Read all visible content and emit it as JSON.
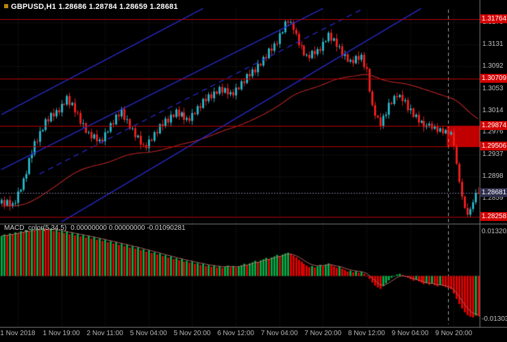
{
  "window": {
    "symbol": "GBPUSD,H1",
    "ohlc_text": "1.28686 1.28784 1.28659 1.28681"
  },
  "macd_header": {
    "name": "MACD_color(5,34,5)",
    "values": "0.00000000 0.00000000 -0.01090281"
  },
  "colors": {
    "background": "#000000",
    "up_candle": "#22b2c5",
    "down_candle": "#ee1c1c",
    "macd_up": "#00a846",
    "macd_down": "#e00000",
    "macd_signal": "#bb6666",
    "hline_red": "#c00000",
    "label_red_bg": "#d40000",
    "label_current_bg": "#2c2c4c",
    "current_line": "#8080a8",
    "trend_blue": "#2b2bd4",
    "ma_red": "#b22222",
    "grid": "#262626",
    "separator": "#7a7a7a",
    "axis_text": "#c0c0c0",
    "vline": "#aaaaaa"
  },
  "price_axis": {
    "ticks": [
      1.317,
      1.3131,
      1.3092,
      1.3053,
      1.3014,
      1.2976,
      1.2937,
      1.2898,
      1.2859
    ],
    "levels": [
      {
        "label": "1.31764",
        "price": 1.31764,
        "type": "red"
      },
      {
        "label": "1.30709",
        "price": 1.30709,
        "type": "red"
      },
      {
        "label": "1.29874",
        "price": 1.29874,
        "type": "red"
      },
      {
        "label": "1.29506",
        "price": 1.29506,
        "type": "red"
      },
      {
        "label": "1.28258",
        "price": 1.28258,
        "type": "red"
      },
      {
        "label": "1.28681",
        "price": 1.28681,
        "type": "current"
      }
    ]
  },
  "time_axis": {
    "labels": [
      {
        "text": "1 Nov 2018",
        "bar": 6
      },
      {
        "text": "1 Nov 19:00",
        "bar": 22
      },
      {
        "text": "2 Nov 11:00",
        "bar": 38
      },
      {
        "text": "5 Nov 04:00",
        "bar": 54
      },
      {
        "text": "5 Nov 20:00",
        "bar": 70
      },
      {
        "text": "6 Nov 12:00",
        "bar": 86
      },
      {
        "text": "7 Nov 04:00",
        "bar": 102
      },
      {
        "text": "7 Nov 20:00",
        "bar": 118
      },
      {
        "text": "8 Nov 12:00",
        "bar": 134
      },
      {
        "text": "9 Nov 04:00",
        "bar": 150
      },
      {
        "text": "9 Nov 20:00",
        "bar": 166
      }
    ]
  },
  "chart_data": {
    "type": "candlestick",
    "symbol": "GBPUSD",
    "timeframe": "H1",
    "title": "GBPUSD,H1",
    "base": 1.2,
    "unit": 0.0001,
    "price_range": [
      1.28202,
      1.3193
    ],
    "ohlc_pips": [
      [
        850,
        859,
        847,
        856
      ],
      [
        856,
        862,
        840,
        846
      ],
      [
        846,
        858,
        844,
        856
      ],
      [
        856,
        864,
        837,
        845
      ],
      [
        845,
        854,
        841,
        850
      ],
      [
        850,
        856,
        845,
        851
      ],
      [
        851,
        878,
        844,
        871
      ],
      [
        871,
        876,
        869,
        874
      ],
      [
        874,
        897,
        871,
        894
      ],
      [
        894,
        908,
        888,
        902
      ],
      [
        902,
        932,
        900,
        930
      ],
      [
        930,
        945,
        922,
        937
      ],
      [
        937,
        964,
        933,
        960
      ],
      [
        960,
        965,
        954,
        959
      ],
      [
        959,
        985,
        952,
        978
      ],
      [
        978,
        982,
        976,
        980
      ],
      [
        980,
        1002,
        977,
        999
      ],
      [
        999,
        1005,
        989,
        995
      ],
      [
        995,
        1012,
        993,
        1010
      ],
      [
        1010,
        1018,
        996,
        1004
      ],
      [
        1004,
        1019,
        1000,
        1015
      ],
      [
        1015,
        1020,
        1006,
        1011
      ],
      [
        1011,
        1033,
        1004,
        1026
      ],
      [
        1026,
        1028,
        1023,
        1025
      ],
      [
        1025,
        1043,
        1022,
        1040
      ],
      [
        1040,
        1046,
        1018,
        1024
      ],
      [
        1024,
        1030,
        1022,
        1028
      ],
      [
        1028,
        1036,
        1003,
        1011
      ],
      [
        1011,
        1015,
        1006,
        1010
      ],
      [
        1010,
        1015,
        986,
        991
      ],
      [
        991,
        999,
        984,
        992
      ],
      [
        992,
        994,
        973,
        975
      ],
      [
        975,
        979,
        972,
        976
      ],
      [
        976,
        982,
        959,
        965
      ],
      [
        965,
        974,
        963,
        972
      ],
      [
        972,
        980,
        952,
        960
      ],
      [
        960,
        967,
        956,
        963
      ],
      [
        963,
        968,
        955,
        960
      ],
      [
        960,
        983,
        953,
        976
      ],
      [
        976,
        979,
        974,
        977
      ],
      [
        977,
        995,
        974,
        992
      ],
      [
        992,
        998,
        984,
        990
      ],
      [
        990,
        1009,
        988,
        1007
      ],
      [
        1007,
        1015,
        996,
        1004
      ],
      [
        1004,
        1021,
        1000,
        1017
      ],
      [
        1017,
        1022,
        993,
        998
      ],
      [
        998,
        1006,
        991,
        999
      ],
      [
        999,
        1001,
        980,
        982
      ],
      [
        982,
        986,
        979,
        983
      ],
      [
        983,
        989,
        961,
        967
      ],
      [
        967,
        972,
        965,
        970
      ],
      [
        970,
        978,
        946,
        954
      ],
      [
        954,
        958,
        949,
        953
      ],
      [
        953,
        958,
        943,
        948
      ],
      [
        948,
        970,
        941,
        963
      ],
      [
        963,
        965,
        959,
        961
      ],
      [
        961,
        979,
        958,
        976
      ],
      [
        976,
        982,
        968,
        974
      ],
      [
        974,
        992,
        972,
        990
      ],
      [
        990,
        998,
        979,
        987
      ],
      [
        987,
        1004,
        983,
        1000
      ],
      [
        1000,
        1005,
        988,
        993
      ],
      [
        993,
        1014,
        986,
        1007
      ],
      [
        1007,
        1009,
        1001,
        1003
      ],
      [
        1003,
        1019,
        1000,
        1016
      ],
      [
        1016,
        1022,
        998,
        1004
      ],
      [
        1004,
        1013,
        1002,
        1011
      ],
      [
        1011,
        1019,
        990,
        998
      ],
      [
        998,
        1005,
        994,
        1001
      ],
      [
        1001,
        1006,
        991,
        996
      ],
      [
        996,
        1017,
        989,
        1010
      ],
      [
        1010,
        1012,
        1006,
        1008
      ],
      [
        1008,
        1025,
        1005,
        1022
      ],
      [
        1022,
        1028,
        1013,
        1019
      ],
      [
        1019,
        1037,
        1017,
        1035
      ],
      [
        1035,
        1043,
        1023,
        1031
      ],
      [
        1031,
        1047,
        1027,
        1043
      ],
      [
        1043,
        1048,
        1031,
        1036
      ],
      [
        1036,
        1055,
        1029,
        1048
      ],
      [
        1048,
        1050,
        1042,
        1044
      ],
      [
        1044,
        1059,
        1041,
        1056
      ],
      [
        1056,
        1062,
        1040,
        1046
      ],
      [
        1046,
        1056,
        1044,
        1054
      ],
      [
        1054,
        1062,
        1035,
        1043
      ],
      [
        1043,
        1051,
        1039,
        1047
      ],
      [
        1047,
        1052,
        1036,
        1041
      ],
      [
        1041,
        1062,
        1034,
        1055
      ],
      [
        1055,
        1057,
        1050,
        1052
      ],
      [
        1052,
        1069,
        1049,
        1066
      ],
      [
        1066,
        1072,
        1057,
        1063
      ],
      [
        1063,
        1081,
        1061,
        1079
      ],
      [
        1079,
        1087,
        1067,
        1075
      ],
      [
        1075,
        1091,
        1071,
        1087
      ],
      [
        1087,
        1092,
        1077,
        1082
      ],
      [
        1082,
        1104,
        1075,
        1097
      ],
      [
        1097,
        1099,
        1092,
        1094
      ],
      [
        1094,
        1112,
        1091,
        1109
      ],
      [
        1109,
        1115,
        1101,
        1107
      ],
      [
        1107,
        1126,
        1105,
        1124
      ],
      [
        1124,
        1132,
        1112,
        1120
      ],
      [
        1120,
        1137,
        1116,
        1133
      ],
      [
        1133,
        1138,
        1127,
        1132
      ],
      [
        1132,
        1158,
        1125,
        1151
      ],
      [
        1151,
        1155,
        1149,
        1153
      ],
      [
        1153,
        1175,
        1150,
        1172
      ],
      [
        1172,
        1176,
        1164,
        1170
      ],
      [
        1170,
        1176.4,
        1168,
        1171
      ],
      [
        1171,
        1174,
        1149,
        1157
      ],
      [
        1157,
        1161,
        1146,
        1150
      ],
      [
        1150,
        1155,
        1125,
        1130
      ],
      [
        1130,
        1137,
        1122,
        1129
      ],
      [
        1129,
        1131,
        1110,
        1112
      ],
      [
        1112,
        1116,
        1109,
        1113
      ],
      [
        1113,
        1119,
        1101,
        1107
      ],
      [
        1107,
        1122,
        1105,
        1120
      ],
      [
        1120,
        1128,
        1106,
        1114
      ],
      [
        1114,
        1127,
        1110,
        1123
      ],
      [
        1123,
        1128,
        1115,
        1120
      ],
      [
        1120,
        1143,
        1113,
        1136
      ],
      [
        1136,
        1139,
        1134,
        1137
      ],
      [
        1137,
        1155,
        1134,
        1152
      ],
      [
        1152,
        1158,
        1132,
        1138
      ],
      [
        1138,
        1144,
        1136,
        1142
      ],
      [
        1142,
        1150,
        1119,
        1127
      ],
      [
        1127,
        1132,
        1123,
        1128
      ],
      [
        1128,
        1133,
        1106,
        1111
      ],
      [
        1111,
        1121,
        1104,
        1114
      ],
      [
        1114,
        1116,
        1099,
        1101
      ],
      [
        1101,
        1107,
        1098,
        1104
      ],
      [
        1104,
        1110,
        1092,
        1098
      ],
      [
        1098,
        1113,
        1096,
        1111
      ],
      [
        1111,
        1119,
        1096,
        1104
      ],
      [
        1104,
        1117,
        1100,
        1113
      ],
      [
        1113,
        1118,
        1086,
        1091
      ],
      [
        1091,
        1098,
        1081,
        1088
      ],
      [
        1088,
        1090,
        1046,
        1048
      ],
      [
        1048,
        1051,
        1021,
        1024
      ],
      [
        1024,
        1030,
        999,
        1005
      ],
      [
        1005,
        1007,
        1000,
        1002
      ],
      [
        1002,
        1010,
        980,
        986
      ],
      [
        986,
        1009,
        982,
        1005
      ],
      [
        1005,
        1012,
        1000,
        1007
      ],
      [
        1007,
        1035,
        1000,
        1028
      ],
      [
        1028,
        1030,
        1024,
        1026
      ],
      [
        1026,
        1043,
        1023,
        1040
      ],
      [
        1040,
        1046,
        1032,
        1038
      ],
      [
        1038,
        1044,
        1036,
        1042
      ],
      [
        1042,
        1050,
        1023,
        1031
      ],
      [
        1031,
        1037,
        1027,
        1033
      ],
      [
        1033,
        1038,
        1010,
        1015
      ],
      [
        1015,
        1025,
        1008,
        1018
      ],
      [
        1018,
        1020,
        1001,
        1003
      ],
      [
        1003,
        1010,
        1000,
        1007
      ],
      [
        1007,
        1013,
        987,
        993
      ],
      [
        993,
        998,
        991,
        996
      ],
      [
        996,
        1004,
        977,
        985
      ],
      [
        985,
        992,
        981,
        988
      ],
      [
        988,
        995,
        984,
        991
      ],
      [
        991,
        996,
        978,
        982
      ],
      [
        982,
        990,
        980,
        987
      ],
      [
        987,
        992,
        972,
        977
      ],
      [
        977,
        985,
        975,
        983
      ],
      [
        983,
        988,
        970,
        974
      ],
      [
        974,
        982,
        972,
        980
      ],
      [
        980,
        984,
        968,
        972
      ],
      [
        972,
        979,
        970,
        976
      ],
      [
        976,
        983,
        945,
        952
      ],
      [
        952,
        954,
        918,
        920
      ],
      [
        920,
        923,
        885,
        888
      ],
      [
        888,
        894,
        856,
        862
      ],
      [
        862,
        864,
        840,
        842
      ],
      [
        842,
        850,
        825.8,
        830
      ],
      [
        830,
        844,
        826,
        840
      ],
      [
        840,
        857,
        835,
        852
      ],
      [
        852,
        875,
        848,
        868.6
      ],
      [
        868.6,
        878.4,
        865.9,
        868.1
      ]
    ],
    "ma": {
      "period": 80,
      "seed": 1.2845
    },
    "trend_lines": [
      {
        "from": [
          0,
          1.3007
        ],
        "to": [
          74,
          1.3195
        ],
        "dash": false
      },
      {
        "from": [
          0,
          1.291
        ],
        "to": [
          118,
          1.3195
        ],
        "dash": false
      },
      {
        "from": [
          14,
          1.2902
        ],
        "to": [
          133,
          1.3195
        ],
        "dash": true
      },
      {
        "from": [
          22,
          1.2817
        ],
        "to": [
          154,
          1.3195
        ],
        "dash": false
      }
    ],
    "h_lines": [
      1.31764,
      1.30709,
      1.29874,
      1.29506,
      1.28258
    ],
    "current_price": 1.28681,
    "rect": {
      "bar_start": 164,
      "price_top": 1.29874,
      "price_bottom": 1.29506
    },
    "vline_bar": 164,
    "macd": {
      "name": "MACD_color",
      "fast": 5,
      "slow": 34,
      "signal": 5,
      "range_max": 0.0132022,
      "range_min": -0.0130329,
      "scale_labels": [
        {
          "label": "0.0132022",
          "value": 0.0132022
        },
        {
          "label": "-0.0130329",
          "value": -0.0130329
        }
      ],
      "hist_pips": [
        108,
        112,
        110,
        115,
        113,
        118,
        116,
        121,
        119,
        124,
        121,
        126,
        123,
        128,
        125,
        130,
        127,
        125,
        129,
        122,
        126,
        119,
        123,
        116,
        120,
        113,
        117,
        110,
        114,
        107,
        111,
        104,
        108,
        101,
        105,
        98,
        101,
        95,
        98,
        91,
        94,
        88,
        91,
        84,
        87,
        81,
        84,
        77,
        80,
        74,
        77,
        70,
        72,
        66,
        69,
        62,
        64,
        58,
        61,
        54,
        56,
        50,
        53,
        46,
        48,
        43,
        46,
        39,
        41,
        36,
        39,
        33,
        35,
        30,
        33,
        27,
        29,
        25,
        28,
        23,
        26,
        22,
        25,
        28,
        24,
        27,
        23,
        26,
        29,
        33,
        30,
        34,
        37,
        41,
        38,
        42,
        45,
        49,
        46,
        50,
        53,
        57,
        54,
        58,
        61,
        63,
        60,
        55,
        50,
        44,
        39,
        33,
        28,
        24,
        27,
        23,
        26,
        30,
        27,
        31,
        34,
        30,
        26,
        22,
        25,
        20,
        16,
        12,
        14,
        10,
        13,
        9,
        11,
        6,
        1,
        -8,
        -18,
        -26,
        -31,
        -35,
        -28,
        -20,
        -12,
        -5,
        0,
        4,
        6,
        3,
        -1,
        -5,
        -9,
        -13,
        -11,
        -15,
        -18,
        -22,
        -20,
        -24,
        -21,
        -25,
        -28,
        -24,
        -27,
        -30,
        -33,
        -36,
        -48,
        -62,
        -76,
        -88,
        -98,
        -106,
        -110,
        -112,
        -107,
        -109
      ]
    }
  }
}
